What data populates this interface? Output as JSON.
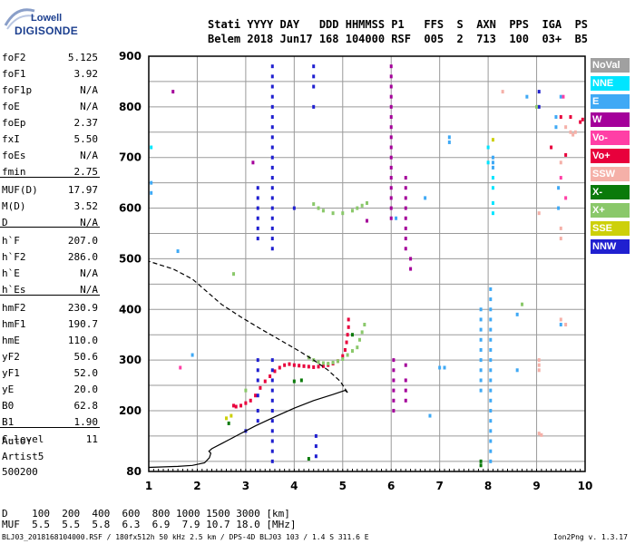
{
  "logo": {
    "line1": "Lowell",
    "line2": "DIGISONDE"
  },
  "header": {
    "line1": "Stati YYYY DAY   DDD HHMMSS P1   FFS  S  AXN  PPS  IGA  PS",
    "line2": "Belem 2018 Jun17 168 104000 RSF  005  2  713  100  03+  B5"
  },
  "params": [
    {
      "k": "foF2",
      "v": "5.125"
    },
    {
      "k": "foF1",
      "v": "3.92"
    },
    {
      "k": "foF1p",
      "v": "N/A"
    },
    {
      "k": "foE",
      "v": "N/A"
    },
    {
      "k": "foEp",
      "v": "2.37"
    },
    {
      "k": "fxI",
      "v": "5.50"
    },
    {
      "k": "foEs",
      "v": "N/A"
    },
    {
      "k": "fmin",
      "v": "2.75"
    },
    {
      "k": "MUF(D)",
      "v": "17.97"
    },
    {
      "k": "M(D)",
      "v": "3.52"
    },
    {
      "k": "D",
      "v": "N/A"
    },
    {
      "k": "h`F",
      "v": "207.0"
    },
    {
      "k": "h`F2",
      "v": "286.0"
    },
    {
      "k": "h`E",
      "v": "N/A"
    },
    {
      "k": "h`Es",
      "v": "N/A"
    },
    {
      "k": "hmF2",
      "v": "230.9"
    },
    {
      "k": "hmF1",
      "v": "190.7"
    },
    {
      "k": "hmE",
      "v": "110.0"
    },
    {
      "k": "yF2",
      "v": "50.6"
    },
    {
      "k": "yF1",
      "v": "52.0"
    },
    {
      "k": "yE",
      "v": "20.0"
    },
    {
      "k": "B0",
      "v": "62.8"
    },
    {
      "k": "B1",
      "v": "1.90"
    },
    {
      "k": "C-level",
      "v": "11"
    }
  ],
  "auto": {
    "l1": "Auto:",
    "l2": "Artist5",
    "l3": "500200"
  },
  "distance_row": "D    100  200  400  600  800 1000 1500 3000 [km]",
  "muf_row": "MUF  5.5  5.5  5.8  6.3  6.9  7.9 10.7 18.0 [MHz]",
  "footer_left": "BLJ03_2018168104000.RSF / 180fx512h 50 kHz 2.5 km / DPS-4D BLJ03 103 / 1.4 S 311.6 E",
  "footer_right": "Ion2Png v. 1.3.17",
  "legend": [
    {
      "label": "NoVal",
      "color": "#a0a0a0"
    },
    {
      "label": "NNE",
      "color": "#00e5ff"
    },
    {
      "label": "E",
      "color": "#3fa9f5"
    },
    {
      "label": "W",
      "color": "#a4009a"
    },
    {
      "label": "Vo-",
      "color": "#ff3fa6"
    },
    {
      "label": "Vo+",
      "color": "#e8003c"
    },
    {
      "label": "SSW",
      "color": "#f5b0a8"
    },
    {
      "label": "X-",
      "color": "#0a7a0a"
    },
    {
      "label": "X+",
      "color": "#8ac86a"
    },
    {
      "label": "SSE",
      "color": "#cdd00a"
    },
    {
      "label": "NNW",
      "color": "#2020d0"
    }
  ],
  "chart_data": {
    "type": "scatter",
    "xlim": [
      1,
      10
    ],
    "ylim": [
      80,
      900
    ],
    "x_ticks": [
      "1",
      "2",
      "3",
      "4",
      "5",
      "6",
      "7",
      "8",
      "9",
      "10"
    ],
    "y_ticks": [
      "80",
      "200",
      "300",
      "400",
      "500",
      "600",
      "700",
      "800",
      "900"
    ],
    "y_tick_values": [
      80,
      200,
      300,
      400,
      500,
      600,
      700,
      800,
      900
    ],
    "grid": true,
    "legend_position": "right",
    "series": [
      {
        "color": "#e8003c",
        "points": [
          [
            2.75,
            210
          ],
          [
            2.8,
            208
          ],
          [
            2.9,
            210
          ],
          [
            3.0,
            215
          ],
          [
            3.1,
            220
          ],
          [
            3.2,
            230
          ],
          [
            3.3,
            245
          ],
          [
            3.4,
            258
          ],
          [
            3.5,
            268
          ],
          [
            3.6,
            278
          ],
          [
            3.7,
            285
          ],
          [
            3.8,
            290
          ],
          [
            3.9,
            292
          ],
          [
            4.0,
            290
          ],
          [
            4.1,
            289
          ],
          [
            4.2,
            288
          ],
          [
            4.3,
            287
          ],
          [
            4.4,
            286
          ],
          [
            4.5,
            287
          ],
          [
            4.6,
            288
          ],
          [
            4.7,
            290
          ],
          [
            4.8,
            293
          ],
          [
            4.9,
            298
          ],
          [
            5.0,
            308
          ],
          [
            5.05,
            320
          ],
          [
            5.08,
            335
          ],
          [
            5.1,
            350
          ],
          [
            5.12,
            365
          ],
          [
            5.12,
            380
          ]
        ]
      },
      {
        "color": "#8ac86a",
        "points": [
          [
            4.3,
            305
          ],
          [
            4.4,
            300
          ],
          [
            4.5,
            296
          ],
          [
            4.6,
            294
          ],
          [
            4.7,
            293
          ],
          [
            4.8,
            295
          ],
          [
            4.9,
            298
          ],
          [
            5.0,
            302
          ],
          [
            5.1,
            310
          ],
          [
            5.2,
            318
          ],
          [
            5.3,
            325
          ],
          [
            5.35,
            340
          ],
          [
            5.4,
            355
          ],
          [
            5.45,
            370
          ],
          [
            4.4,
            608
          ],
          [
            4.5,
            600
          ],
          [
            4.6,
            595
          ],
          [
            4.8,
            590
          ],
          [
            5.0,
            590
          ],
          [
            5.2,
            595
          ],
          [
            5.3,
            600
          ],
          [
            5.4,
            605
          ],
          [
            5.5,
            610
          ]
        ]
      },
      {
        "color": "#a4009a",
        "points": [
          [
            6.0,
            880
          ],
          [
            6.0,
            860
          ],
          [
            6.0,
            840
          ],
          [
            6.0,
            820
          ],
          [
            6.0,
            800
          ],
          [
            6.0,
            780
          ],
          [
            6.0,
            760
          ],
          [
            6.0,
            740
          ],
          [
            6.0,
            720
          ],
          [
            6.0,
            700
          ],
          [
            6.0,
            680
          ],
          [
            6.0,
            660
          ],
          [
            6.0,
            640
          ],
          [
            6.0,
            620
          ],
          [
            6.0,
            600
          ],
          [
            6.0,
            580
          ],
          [
            6.3,
            660
          ],
          [
            6.3,
            640
          ],
          [
            6.3,
            620
          ],
          [
            6.3,
            600
          ],
          [
            6.3,
            580
          ],
          [
            6.3,
            560
          ],
          [
            6.3,
            540
          ],
          [
            6.3,
            520
          ],
          [
            6.4,
            500
          ],
          [
            6.4,
            480
          ],
          [
            6.05,
            300
          ],
          [
            6.05,
            280
          ],
          [
            6.05,
            260
          ],
          [
            6.05,
            240
          ],
          [
            6.05,
            220
          ],
          [
            6.05,
            200
          ],
          [
            6.3,
            290
          ],
          [
            6.3,
            260
          ],
          [
            6.3,
            240
          ],
          [
            6.3,
            220
          ],
          [
            1.5,
            830
          ],
          [
            5.5,
            575
          ],
          [
            3.15,
            690
          ]
        ]
      },
      {
        "color": "#2020d0",
        "points": [
          [
            3.55,
            880
          ],
          [
            3.55,
            860
          ],
          [
            3.55,
            840
          ],
          [
            3.55,
            820
          ],
          [
            3.55,
            800
          ],
          [
            3.55,
            780
          ],
          [
            3.55,
            760
          ],
          [
            3.55,
            740
          ],
          [
            3.55,
            720
          ],
          [
            3.55,
            700
          ],
          [
            3.55,
            680
          ],
          [
            3.55,
            660
          ],
          [
            3.55,
            640
          ],
          [
            3.55,
            620
          ],
          [
            3.55,
            600
          ],
          [
            3.55,
            580
          ],
          [
            3.55,
            560
          ],
          [
            3.55,
            540
          ],
          [
            3.55,
            520
          ],
          [
            3.25,
            640
          ],
          [
            3.25,
            620
          ],
          [
            3.25,
            600
          ],
          [
            3.25,
            580
          ],
          [
            3.25,
            560
          ],
          [
            3.25,
            540
          ],
          [
            3.55,
            300
          ],
          [
            3.55,
            280
          ],
          [
            3.55,
            260
          ],
          [
            3.55,
            240
          ],
          [
            3.55,
            220
          ],
          [
            3.55,
            200
          ],
          [
            3.55,
            180
          ],
          [
            3.55,
            160
          ],
          [
            3.55,
            140
          ],
          [
            3.55,
            120
          ],
          [
            3.55,
            100
          ],
          [
            3.25,
            300
          ],
          [
            3.25,
            280
          ],
          [
            3.25,
            260
          ],
          [
            3.25,
            230
          ],
          [
            3.25,
            200
          ],
          [
            3.25,
            180
          ],
          [
            4.4,
            880
          ],
          [
            4.4,
            860
          ],
          [
            4.4,
            840
          ],
          [
            4.4,
            800
          ],
          [
            4.45,
            150
          ],
          [
            4.45,
            130
          ],
          [
            4.45,
            110
          ],
          [
            3.0,
            160
          ],
          [
            4.0,
            600
          ],
          [
            9.05,
            830
          ],
          [
            9.05,
            800
          ]
        ]
      },
      {
        "color": "#3fa9f5",
        "points": [
          [
            8.05,
            440
          ],
          [
            8.05,
            420
          ],
          [
            8.05,
            400
          ],
          [
            8.05,
            380
          ],
          [
            8.05,
            360
          ],
          [
            8.05,
            340
          ],
          [
            8.05,
            320
          ],
          [
            8.05,
            300
          ],
          [
            8.05,
            280
          ],
          [
            8.05,
            260
          ],
          [
            8.05,
            240
          ],
          [
            8.05,
            220
          ],
          [
            8.05,
            200
          ],
          [
            8.05,
            180
          ],
          [
            8.05,
            160
          ],
          [
            8.05,
            140
          ],
          [
            8.05,
            120
          ],
          [
            8.05,
            100
          ],
          [
            7.85,
            400
          ],
          [
            7.85,
            380
          ],
          [
            7.85,
            360
          ],
          [
            7.85,
            340
          ],
          [
            7.85,
            320
          ],
          [
            7.85,
            300
          ],
          [
            7.85,
            280
          ],
          [
            7.85,
            260
          ],
          [
            7.85,
            240
          ],
          [
            8.1,
            700
          ],
          [
            8.1,
            690
          ],
          [
            8.1,
            680
          ],
          [
            7.2,
            740
          ],
          [
            7.2,
            730
          ],
          [
            9.5,
            820
          ],
          [
            9.4,
            780
          ],
          [
            9.4,
            760
          ],
          [
            9.45,
            640
          ],
          [
            9.45,
            600
          ],
          [
            1.05,
            650
          ],
          [
            1.05,
            630
          ],
          [
            1.6,
            515
          ],
          [
            1.9,
            310
          ],
          [
            7.0,
            285
          ],
          [
            7.1,
            285
          ],
          [
            8.6,
            390
          ],
          [
            8.6,
            280
          ],
          [
            9.5,
            370
          ],
          [
            6.8,
            190
          ],
          [
            8.8,
            820
          ],
          [
            6.1,
            580
          ],
          [
            6.7,
            620
          ]
        ]
      },
      {
        "color": "#00e5ff",
        "points": [
          [
            8.0,
            720
          ],
          [
            8.0,
            690
          ],
          [
            8.1,
            660
          ],
          [
            8.1,
            640
          ],
          [
            8.1,
            610
          ],
          [
            8.1,
            590
          ],
          [
            1.05,
            720
          ]
        ]
      },
      {
        "color": "#f5b0a8",
        "points": [
          [
            9.05,
            300
          ],
          [
            9.05,
            290
          ],
          [
            9.05,
            280
          ],
          [
            9.5,
            560
          ],
          [
            9.5,
            540
          ],
          [
            9.6,
            760
          ],
          [
            9.7,
            750
          ],
          [
            9.75,
            745
          ],
          [
            9.8,
            750
          ],
          [
            9.5,
            690
          ],
          [
            9.05,
            155
          ],
          [
            9.1,
            152
          ],
          [
            9.5,
            380
          ],
          [
            9.6,
            370
          ],
          [
            9.05,
            590
          ],
          [
            8.3,
            830
          ]
        ]
      },
      {
        "color": "#e8003c",
        "points": [
          [
            9.9,
            770
          ],
          [
            9.95,
            775
          ],
          [
            9.7,
            780
          ],
          [
            9.5,
            780
          ],
          [
            9.6,
            705
          ],
          [
            9.3,
            720
          ]
        ]
      },
      {
        "color": "#ff3fa6",
        "points": [
          [
            9.55,
            820
          ],
          [
            9.6,
            620
          ],
          [
            9.5,
            660
          ],
          [
            1.65,
            285
          ]
        ]
      },
      {
        "color": "#0a7a0a",
        "points": [
          [
            2.65,
            175
          ],
          [
            4.15,
            260
          ],
          [
            4.3,
            105
          ],
          [
            7.85,
            100
          ],
          [
            7.85,
            92
          ],
          [
            4.0,
            258
          ],
          [
            5.2,
            350
          ]
        ]
      },
      {
        "color": "#cdd00a",
        "points": [
          [
            8.1,
            735
          ],
          [
            2.6,
            185
          ],
          [
            2.7,
            190
          ]
        ]
      },
      {
        "color": "#8ac86a",
        "points": [
          [
            2.75,
            470
          ],
          [
            3.0,
            240
          ],
          [
            8.7,
            410
          ],
          [
            9.0,
            800
          ]
        ]
      }
    ],
    "profile_line": [
      [
        1.0,
        88
      ],
      [
        1.6,
        90
      ],
      [
        1.9,
        92
      ],
      [
        2.15,
        97
      ],
      [
        2.25,
        107
      ],
      [
        2.28,
        116
      ],
      [
        2.24,
        120
      ],
      [
        2.3,
        125
      ],
      [
        2.5,
        135
      ],
      [
        2.8,
        150
      ],
      [
        3.2,
        170
      ],
      [
        3.6,
        188
      ],
      [
        4.0,
        205
      ],
      [
        4.4,
        220
      ],
      [
        4.8,
        232
      ],
      [
        5.05,
        240
      ],
      [
        5.1,
        236
      ],
      [
        4.95,
        258
      ],
      [
        4.7,
        280
      ],
      [
        4.4,
        300
      ],
      [
        4.1,
        318
      ],
      [
        3.7,
        340
      ],
      [
        3.3,
        362
      ],
      [
        2.9,
        385
      ],
      [
        2.5,
        410
      ],
      [
        2.2,
        435
      ],
      [
        1.9,
        460
      ],
      [
        1.5,
        480
      ],
      [
        1.0,
        495
      ]
    ]
  }
}
